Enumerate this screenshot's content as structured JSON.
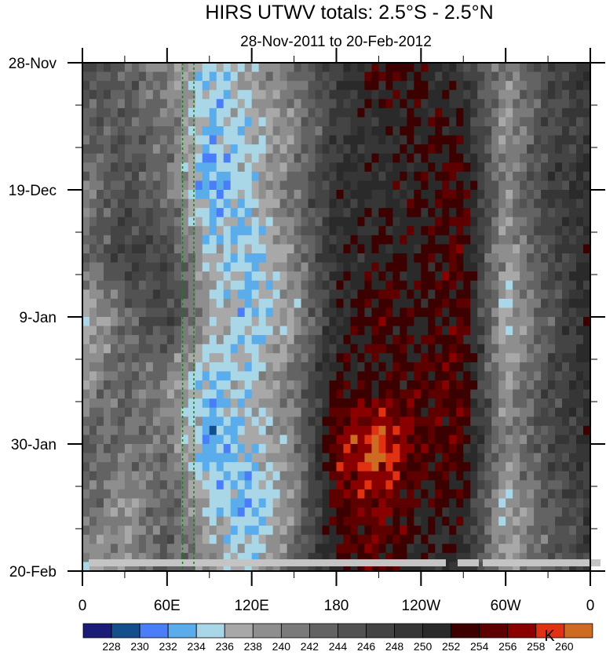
{
  "chart_data": {
    "type": "heatmap",
    "title": "HIRS UTWV totals: 2.5°S - 2.5°N",
    "subtitle": "28-Nov-2011 to 20-Feb-2012",
    "units_label": "K",
    "x": {
      "description": "longitude (degrees east, 0-360)",
      "range": [
        0,
        360
      ],
      "major_ticks": [
        0,
        60,
        120,
        180,
        240,
        300,
        360
      ],
      "tick_labels": [
        "0",
        "60E",
        "120E",
        "180",
        "120W",
        "60W",
        "0"
      ],
      "minor_step": 30
    },
    "y": {
      "description": "days since 28-Nov-2011 (increasing downward)",
      "range": [
        0,
        84
      ],
      "major_ticks": [
        0,
        21,
        42,
        63,
        84
      ],
      "tick_labels": [
        "28-Nov",
        "19-Dec",
        "9-Jan",
        "30-Jan",
        "20-Feb"
      ],
      "minor_step": 7
    },
    "grid_lon": [
      0,
      30,
      60,
      90,
      120,
      150,
      180,
      210,
      240,
      270,
      300,
      330,
      360
    ],
    "grid_day": [
      0,
      10.5,
      21,
      31.5,
      42,
      52.5,
      63,
      73.5,
      84
    ],
    "values_K": [
      [
        246,
        244,
        240,
        234,
        238,
        242,
        248,
        254,
        252,
        248,
        240,
        246,
        250
      ],
      [
        244,
        244,
        242,
        234,
        236,
        240,
        248,
        250,
        252,
        252,
        238,
        246,
        248
      ],
      [
        240,
        246,
        242,
        232,
        236,
        242,
        250,
        250,
        252,
        254,
        240,
        248,
        250
      ],
      [
        242,
        248,
        246,
        236,
        234,
        240,
        250,
        252,
        252,
        254,
        238,
        246,
        250
      ],
      [
        236,
        242,
        248,
        238,
        234,
        238,
        250,
        254,
        252,
        254,
        236,
        244,
        252
      ],
      [
        238,
        244,
        240,
        234,
        236,
        242,
        252,
        252,
        254,
        254,
        238,
        246,
        250
      ],
      [
        244,
        242,
        242,
        232,
        236,
        240,
        256,
        261,
        254,
        254,
        240,
        246,
        250
      ],
      [
        244,
        238,
        244,
        236,
        232,
        240,
        254,
        256,
        252,
        252,
        236,
        244,
        248
      ],
      [
        236,
        240,
        244,
        240,
        236,
        244,
        252,
        254,
        250,
        250,
        238,
        244,
        248
      ]
    ],
    "reference_lines_lon": [
      71,
      79
    ],
    "colorbar": {
      "levels": [
        228,
        230,
        232,
        234,
        236,
        238,
        240,
        242,
        244,
        246,
        248,
        250,
        252,
        254,
        256,
        258,
        260
      ],
      "colors": [
        "#1b1b78",
        "#124f8c",
        "#4a7ef8",
        "#5aacea",
        "#a9d7e8",
        "#a8a8a8",
        "#8e8e8e",
        "#7a7a7a",
        "#636363",
        "#525252",
        "#444444",
        "#363636",
        "#2a2a2a",
        "#3c0000",
        "#5e0000",
        "#8a0000",
        "#e03212",
        "#cf6a22"
      ]
    }
  }
}
